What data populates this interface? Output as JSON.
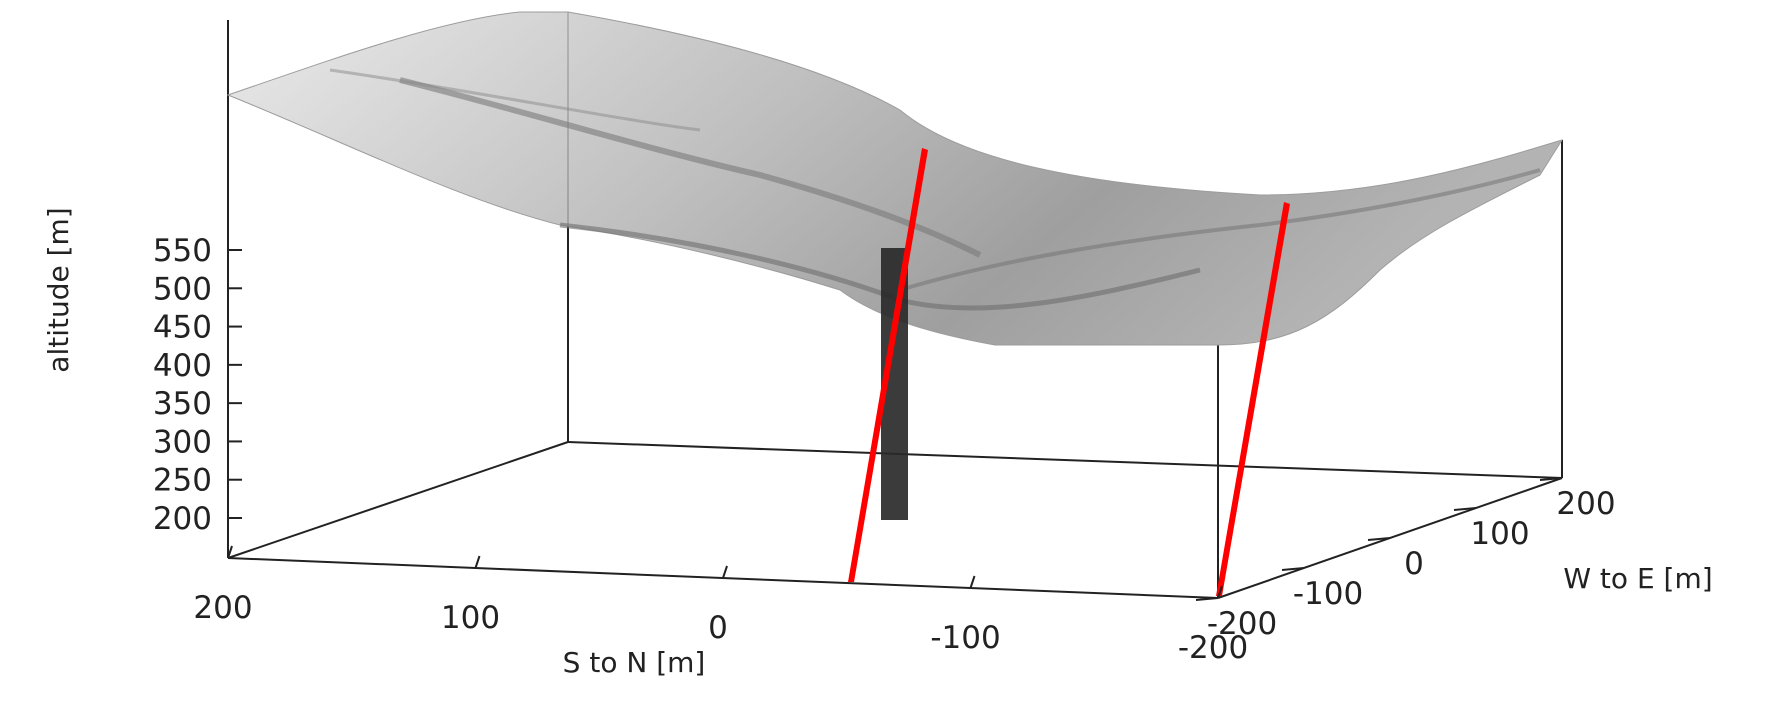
{
  "chart_data": {
    "type": "surface3d",
    "title": "",
    "grid": false,
    "legend": "none",
    "axes": {
      "z": {
        "label": "altitude [m]",
        "range": [
          175,
          570
        ],
        "ticks": [
          200,
          250,
          300,
          350,
          400,
          450,
          500,
          550
        ],
        "tick_labels": [
          "200",
          "250",
          "300",
          "350",
          "400",
          "450",
          "500",
          "550"
        ]
      },
      "x": {
        "label": "S to N [m]",
        "range": [
          200,
          -200
        ],
        "ticks": [
          200,
          100,
          0,
          -100,
          -200
        ],
        "tick_labels": [
          "200",
          "100",
          "0",
          "-100",
          "-200"
        ]
      },
      "y": {
        "label": "W to E [m]",
        "range": [
          -200,
          200
        ],
        "ticks": [
          -200,
          -100,
          0,
          100,
          200
        ],
        "tick_labels": [
          "-200",
          "-100",
          "0",
          "100",
          "200"
        ]
      }
    },
    "surface": {
      "name": "terrain",
      "color": "#9a9a9a",
      "profile_south_edge": [
        [
          -200,
          510
        ],
        [
          -100,
          540
        ],
        [
          0,
          548
        ],
        [
          100,
          560
        ],
        [
          200,
          568
        ]
      ],
      "valley_floor_min_altitude": 340,
      "profile_north_edge": [
        [
          -200,
          470
        ],
        [
          -100,
          430
        ],
        [
          0,
          420
        ],
        [
          100,
          445
        ],
        [
          200,
          455
        ]
      ]
    },
    "features": [
      {
        "name": "vertical column",
        "color": "#2a2a2a",
        "altitude_range": [
          200,
          400
        ]
      },
      {
        "name": "red plane 1",
        "color": "#ff0000"
      },
      {
        "name": "red plane 2",
        "color": "#ff0000"
      }
    ]
  }
}
